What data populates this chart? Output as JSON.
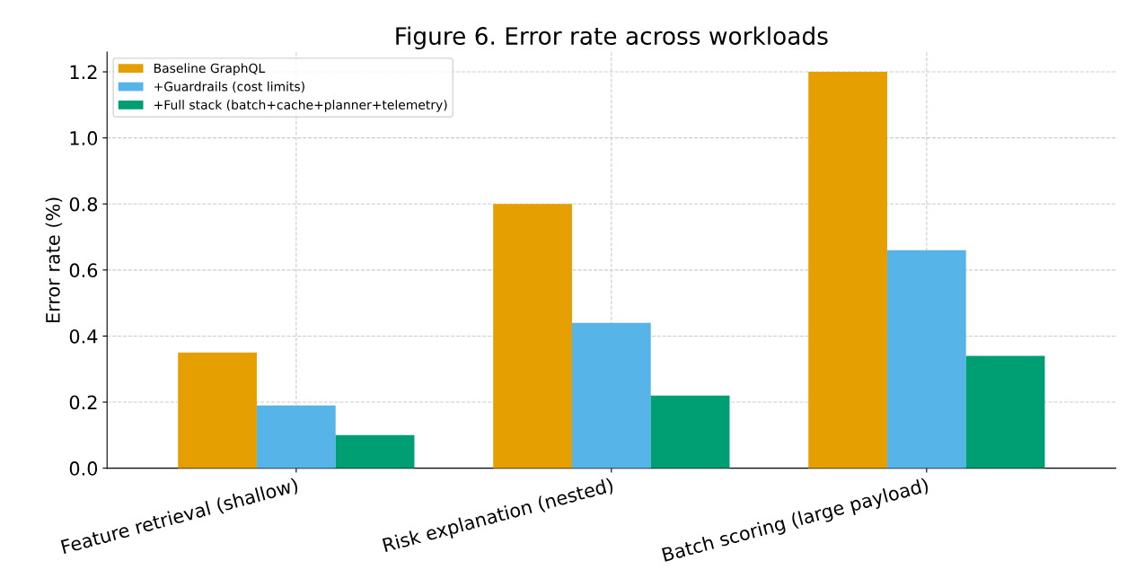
{
  "chart_data": {
    "type": "bar",
    "title": "Figure 6. Error rate across workloads",
    "ylabel": "Error rate (%)",
    "categories": [
      "Feature retrieval (shallow)",
      "Risk explanation (nested)",
      "Batch scoring (large payload)"
    ],
    "series": [
      {
        "name": "Baseline GraphQL",
        "color": "#e69f00",
        "values": [
          0.35,
          0.8,
          1.2
        ]
      },
      {
        "name": "+Guardrails (cost limits)",
        "color": "#56b4e9",
        "values": [
          0.19,
          0.44,
          0.66
        ]
      },
      {
        "name": "+Full stack (batch+cache+planner+telemetry)",
        "color": "#009e73",
        "values": [
          0.1,
          0.22,
          0.34
        ]
      }
    ],
    "ylim": [
      0,
      1.26
    ],
    "yticks": [
      {
        "value": 0,
        "label": "0.0"
      },
      {
        "value": 0.2,
        "label": "0.2"
      },
      {
        "value": 0.4,
        "label": "0.4"
      },
      {
        "value": 0.6,
        "label": "0.6"
      },
      {
        "value": 0.8,
        "label": "0.8"
      },
      {
        "value": 1.0,
        "label": "1.0"
      },
      {
        "value": 1.2,
        "label": "1.2"
      }
    ],
    "grid": true,
    "legend": "top left"
  }
}
